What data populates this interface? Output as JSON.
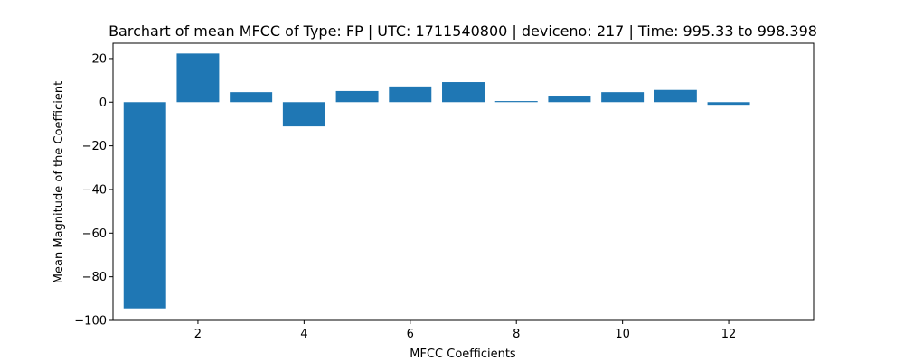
{
  "chart_data": {
    "type": "bar",
    "title": "Barchart of mean MFCC of Type: FP | UTC: 1711540800 | deviceno: 217 | Time: 995.33 to 998.398",
    "xlabel": "MFCC Coefficients",
    "ylabel": "Mean Magnitude of the Coefficient",
    "x": [
      1,
      2,
      3,
      4,
      5,
      6,
      7,
      8,
      9,
      10,
      11,
      12
    ],
    "values": [
      -94.5,
      22.3,
      4.6,
      -11.1,
      5.1,
      7.2,
      9.2,
      0.5,
      3.0,
      4.6,
      5.6,
      -1.2
    ],
    "xlim": [
      0.4,
      13.6
    ],
    "ylim": [
      -100,
      27
    ],
    "xticks": [
      2,
      4,
      6,
      8,
      10,
      12
    ],
    "yticks": [
      -100,
      -80,
      -60,
      -40,
      -20,
      0,
      20
    ],
    "bar_width": 0.8,
    "bar_color": "#1f77b4",
    "grid": false
  }
}
